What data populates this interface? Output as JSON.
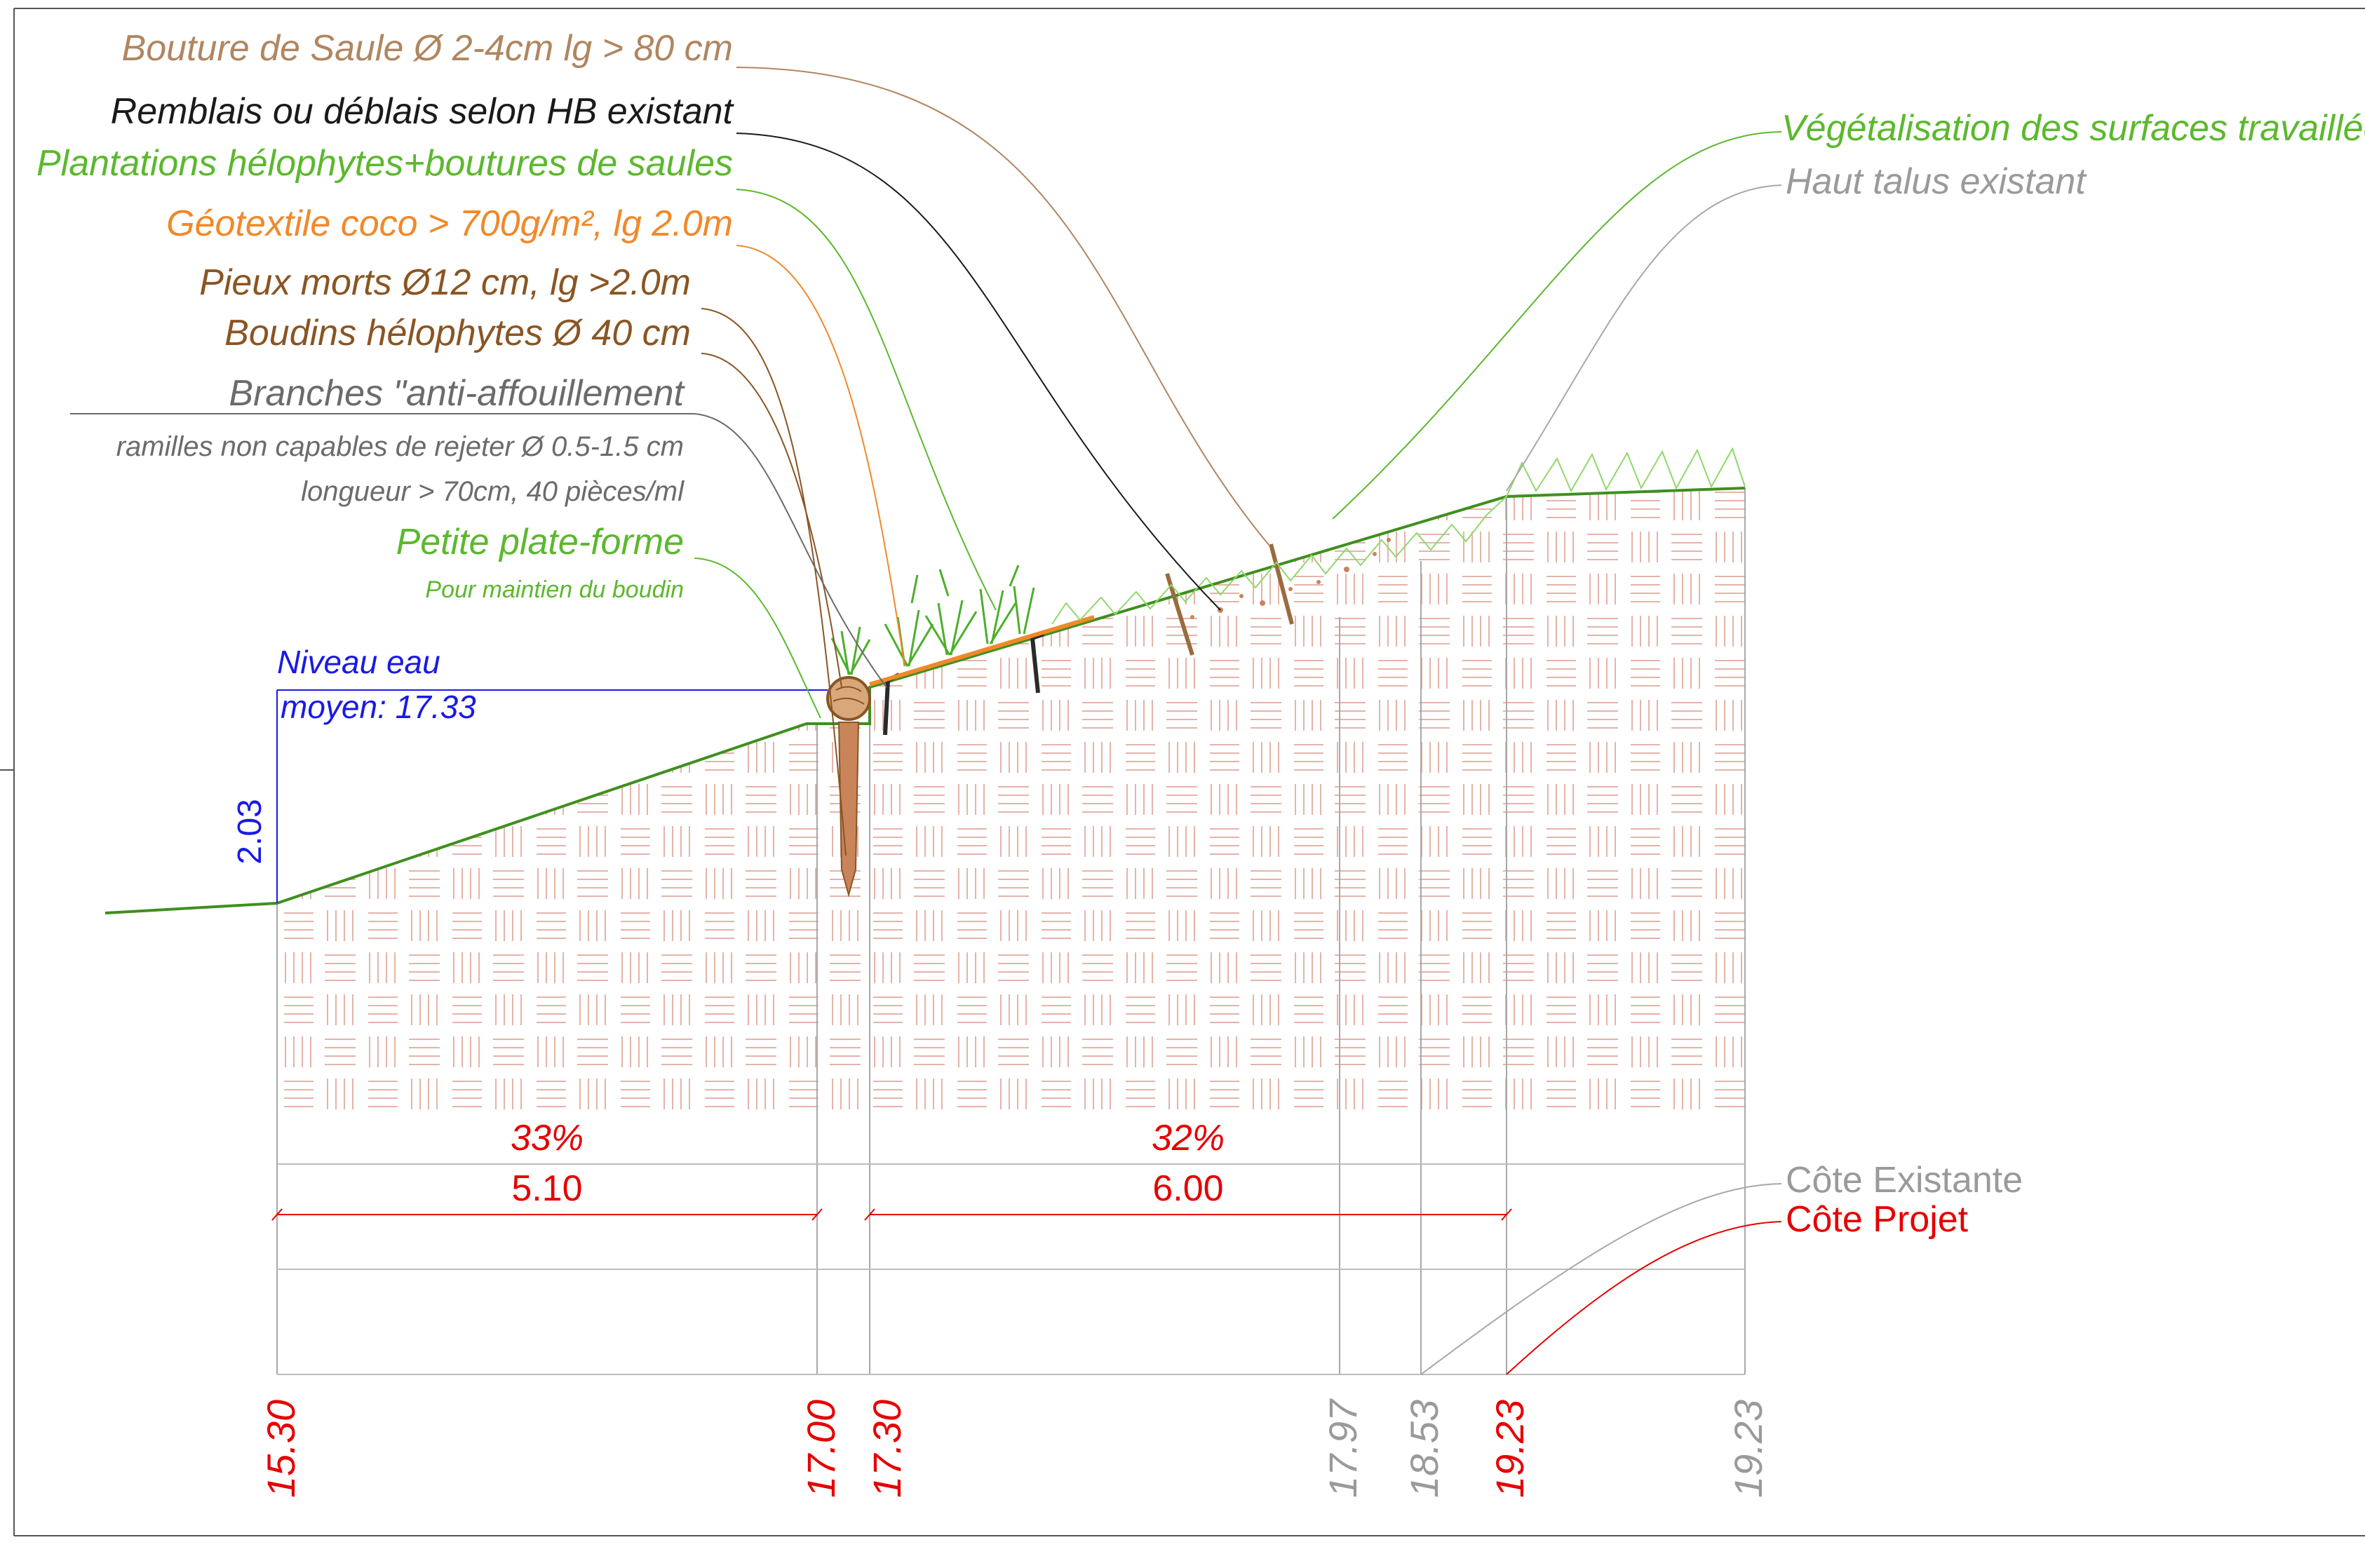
{
  "labels": {
    "bouture": "Bouture de Saule Ø 2-4cm lg > 80 cm",
    "remblais": "Remblais ou déblais selon HB existant",
    "plantations": "Plantations hélophytes+boutures de saules",
    "geotextile": "Géotextile coco > 700g/m², lg 2.0m",
    "pieux": "Pieux morts Ø12 cm, lg >2.0m",
    "boudins": "Boudins hélophytes Ø 40 cm",
    "branches": "Branches \"anti-affouillement",
    "ramilles_line1": "ramilles non capables de rejeter Ø 0.5-1.5 cm",
    "ramilles_line2": "longueur > 70cm, 40 pièces/ml",
    "plateforme": "Petite plate-forme",
    "plateforme_sub": "Pour maintien du boudin",
    "vegetalisation": "Végétalisation des surfaces travaillées",
    "haut_talus": "Haut talus existant",
    "niveau_eau_1": "Niveau eau",
    "niveau_eau_2": "moyen: 17.33",
    "cote_existante": "Côte Existante",
    "cote_projet": "Côte Projet"
  },
  "dimensions": {
    "height_vertical": "2.03",
    "slope_left": "33%",
    "slope_right": "32%",
    "length_left": "5.10",
    "length_right": "6.00"
  },
  "elevations": [
    {
      "value": "15.30",
      "kind": "projet"
    },
    {
      "value": "17.00",
      "kind": "projet"
    },
    {
      "value": "17.30",
      "kind": "projet"
    },
    {
      "value": "17.97",
      "kind": "existante"
    },
    {
      "value": "18.53",
      "kind": "existante"
    },
    {
      "value": "19.23",
      "kind": "projet"
    },
    {
      "value": "19.23",
      "kind": "existante"
    }
  ],
  "colors": {
    "bouture": "#b08660",
    "remblais": "#1a1a1a",
    "green": "#5cb82e",
    "geotextile": "#f0892a",
    "brown": "#8a5523",
    "gray": "#6b6b6b",
    "lightgray": "#9a9a9a",
    "water": "#1a1ae6",
    "projet": "#e60000",
    "slope": "#3f8f1f"
  }
}
